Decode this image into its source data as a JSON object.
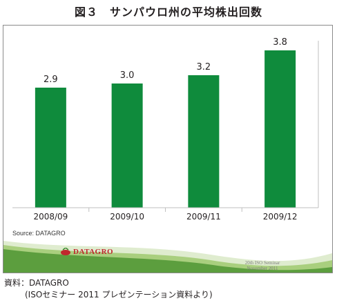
{
  "figure_title": "図３　サンパウロ州の平均株出回数",
  "source_in_chart": "Source: DATAGRO",
  "logo_text": "DATAGRO",
  "seminar_text": {
    "line1": "20th ISO Seminar",
    "line2": "November 2011"
  },
  "caption": {
    "line1": "資料：DATAGRO",
    "line2": "(ISOセミナー 2011 プレゼンテーション資料より)"
  },
  "colors": {
    "bar": "#0f8b3c",
    "footer_green": "#5c9e3e",
    "logo_red": "#c0272d"
  },
  "chart_data": {
    "type": "bar",
    "categories": [
      "2008/09",
      "2009/10",
      "2009/11",
      "2009/12"
    ],
    "values": [
      2.9,
      3.0,
      3.2,
      3.8
    ],
    "data_labels": [
      "2.9",
      "3.0",
      "3.2",
      "3.8"
    ],
    "title": "",
    "xlabel": "",
    "ylabel": "",
    "ylim": [
      0,
      4.4
    ],
    "grid": false,
    "legend": "none"
  }
}
